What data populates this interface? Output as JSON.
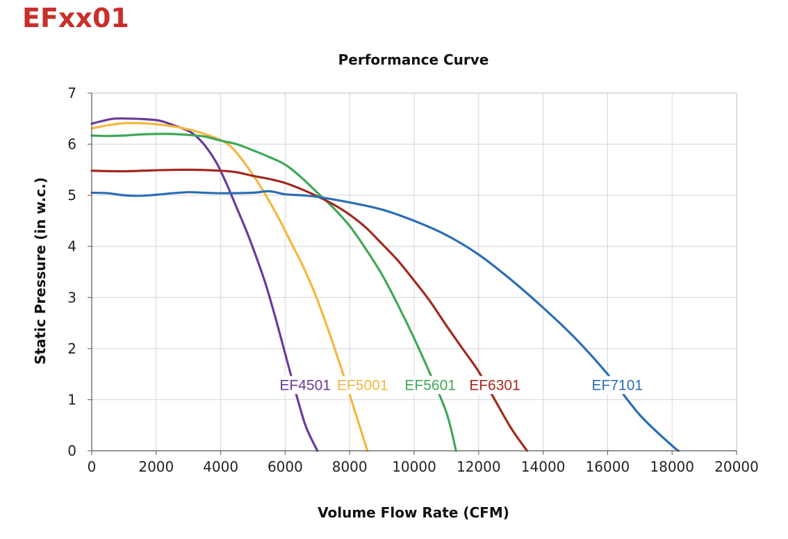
{
  "brand": "EFxx01",
  "chart_data": {
    "type": "line",
    "title": "Performance Curve",
    "xlabel": "Volume Flow Rate (CFM)",
    "ylabel": "Static Pressure (in w.c.)",
    "xlim": [
      0,
      20000
    ],
    "ylim": [
      0,
      7
    ],
    "xticks": [
      "0",
      "2000",
      "4000",
      "6000",
      "8000",
      "10000",
      "12000",
      "14000",
      "16000",
      "18000",
      "20000"
    ],
    "yticks": [
      "0",
      "1",
      "2",
      "3",
      "4",
      "5",
      "6",
      "7"
    ],
    "grid": true,
    "legend": "inline labels",
    "series": [
      {
        "name": "EF4501",
        "color": "#6a3a99",
        "x": [
          0,
          300,
          700,
          1200,
          1600,
          2100,
          2500,
          3000,
          3300,
          3600,
          3900,
          4200,
          4500,
          4800,
          5100,
          5400,
          5700,
          6000,
          6300,
          6600,
          6800,
          7000
        ],
        "y": [
          6.4,
          6.45,
          6.5,
          6.5,
          6.49,
          6.46,
          6.38,
          6.26,
          6.12,
          5.9,
          5.6,
          5.2,
          4.75,
          4.3,
          3.8,
          3.25,
          2.6,
          1.9,
          1.2,
          0.55,
          0.25,
          0.0
        ]
      },
      {
        "name": "EF5001",
        "color": "#f4b740",
        "x": [
          0,
          500,
          1000,
          1500,
          2000,
          2500,
          3000,
          3500,
          4000,
          4300,
          4600,
          5000,
          5400,
          5800,
          6200,
          6600,
          7000,
          7400,
          7800,
          8100,
          8300,
          8550
        ],
        "y": [
          6.31,
          6.37,
          6.41,
          6.41,
          6.39,
          6.35,
          6.29,
          6.2,
          6.08,
          5.96,
          5.75,
          5.4,
          5.0,
          4.55,
          4.05,
          3.55,
          2.95,
          2.25,
          1.5,
          0.9,
          0.5,
          0.0
        ]
      },
      {
        "name": "EF5601",
        "color": "#3ea856",
        "x": [
          0,
          500,
          1000,
          1500,
          2000,
          2500,
          3000,
          3500,
          4000,
          4500,
          5000,
          5500,
          6000,
          6500,
          7000,
          7500,
          8000,
          8500,
          9000,
          9500,
          10000,
          10500,
          11000,
          11300
        ],
        "y": [
          6.17,
          6.16,
          6.17,
          6.19,
          6.2,
          6.2,
          6.18,
          6.15,
          6.07,
          6.0,
          5.88,
          5.75,
          5.6,
          5.35,
          5.05,
          4.75,
          4.4,
          3.95,
          3.45,
          2.85,
          2.2,
          1.5,
          0.75,
          0.0
        ]
      },
      {
        "name": "EF6301",
        "color": "#a3281e",
        "x": [
          0,
          1000,
          2000,
          3000,
          4000,
          4500,
          5000,
          5500,
          6000,
          6500,
          7000,
          7500,
          8000,
          8500,
          9000,
          9500,
          10000,
          10500,
          11000,
          11500,
          12000,
          12500,
          13000,
          13500
        ],
        "y": [
          5.48,
          5.47,
          5.49,
          5.5,
          5.48,
          5.45,
          5.38,
          5.32,
          5.24,
          5.12,
          4.98,
          4.82,
          4.62,
          4.37,
          4.05,
          3.72,
          3.33,
          2.92,
          2.45,
          2.0,
          1.55,
          1.0,
          0.45,
          0.0
        ]
      },
      {
        "name": "EF7101",
        "color": "#2a6db5",
        "x": [
          0,
          500,
          1000,
          1500,
          2000,
          2500,
          3000,
          3500,
          4000,
          5000,
          5500,
          6000,
          6500,
          7000,
          8000,
          9000,
          10000,
          11000,
          12000,
          13000,
          14000,
          15000,
          16000,
          17000,
          18000,
          18200
        ],
        "y": [
          5.05,
          5.04,
          5.0,
          4.99,
          5.01,
          5.04,
          5.06,
          5.05,
          5.04,
          5.05,
          5.08,
          5.02,
          5.0,
          4.97,
          4.86,
          4.72,
          4.5,
          4.22,
          3.84,
          3.35,
          2.8,
          2.2,
          1.5,
          0.7,
          0.1,
          0.0
        ]
      }
    ],
    "annotations": [
      "EF4501",
      "EF5001",
      "EF5601",
      "EF6301",
      "EF7101"
    ]
  }
}
